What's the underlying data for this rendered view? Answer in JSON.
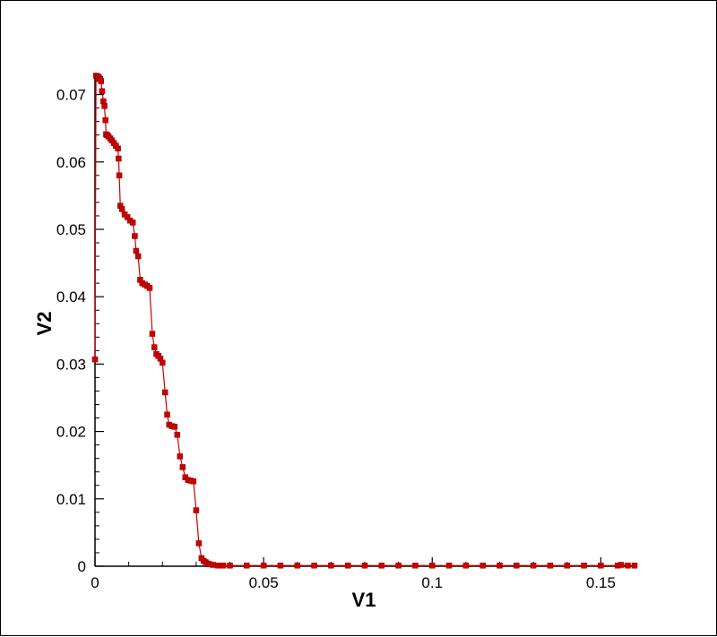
{
  "chart_data": {
    "type": "line",
    "title": "",
    "xlabel": "V1",
    "ylabel": "V2",
    "xlim": [
      0,
      0.16
    ],
    "ylim": [
      0,
      0.073
    ],
    "grid": false,
    "legend": "none",
    "marker": "square",
    "color": "#cc0000",
    "x_ticks": [
      0,
      0.05,
      0.1,
      0.15
    ],
    "x_tick_labels": [
      "0",
      "0.05",
      "0.1",
      "0.15"
    ],
    "y_ticks": [
      0,
      0.01,
      0.02,
      0.03,
      0.04,
      0.05,
      0.06,
      0.07
    ],
    "y_tick_labels": [
      "0",
      "0.01",
      "0.02",
      "0.03",
      "0.04",
      "0.05",
      "0.06",
      "0.07"
    ],
    "series": [
      {
        "x": [
          0.0,
          0.0003,
          0.0006,
          0.0009,
          0.0012,
          0.0015,
          0.0018,
          0.0021,
          0.0025,
          0.0028,
          0.0031,
          0.0033,
          0.0036,
          0.004,
          0.0045,
          0.005,
          0.0056,
          0.0062,
          0.0068,
          0.007,
          0.0072,
          0.0075,
          0.008,
          0.0088,
          0.0096,
          0.0104,
          0.0112,
          0.0118,
          0.0122,
          0.0128,
          0.0134,
          0.014,
          0.0148,
          0.0155,
          0.0162,
          0.017,
          0.0176,
          0.0182,
          0.0188,
          0.0194,
          0.02,
          0.0208,
          0.0214,
          0.022,
          0.0228,
          0.0236,
          0.0244,
          0.0252,
          0.026,
          0.0268,
          0.0276,
          0.0284,
          0.0292,
          0.03,
          0.0308,
          0.0316,
          0.0322,
          0.0328,
          0.0334,
          0.034,
          0.035,
          0.0365,
          0.038,
          0.04,
          0.045,
          0.05,
          0.055,
          0.06,
          0.065,
          0.07,
          0.075,
          0.08,
          0.085,
          0.09,
          0.095,
          0.1,
          0.105,
          0.11,
          0.115,
          0.12,
          0.125,
          0.13,
          0.135,
          0.14,
          0.145,
          0.15,
          0.155,
          0.156,
          0.158,
          0.16
        ],
        "y": [
          0.0307,
          0.0728,
          0.0726,
          0.0727,
          0.0725,
          0.0723,
          0.072,
          0.0705,
          0.069,
          0.0683,
          0.0662,
          0.0641,
          0.064,
          0.0638,
          0.0635,
          0.0632,
          0.0628,
          0.0624,
          0.062,
          0.0605,
          0.058,
          0.0535,
          0.053,
          0.0522,
          0.0518,
          0.0513,
          0.051,
          0.049,
          0.0468,
          0.046,
          0.0425,
          0.042,
          0.0418,
          0.0416,
          0.0413,
          0.0345,
          0.0325,
          0.0315,
          0.0312,
          0.0308,
          0.0302,
          0.0258,
          0.0225,
          0.021,
          0.0208,
          0.0207,
          0.0195,
          0.0163,
          0.0147,
          0.0132,
          0.0128,
          0.0127,
          0.0126,
          0.0083,
          0.0034,
          0.0012,
          0.0008,
          0.0006,
          0.0004,
          0.0003,
          0.0002,
          0.0001,
          0.0001,
          0.0001,
          0.0001,
          0.0001,
          0.0001,
          0.0001,
          0.0001,
          0.0001,
          0.0001,
          0.0001,
          0.0001,
          0.0001,
          0.0001,
          0.0001,
          0.0001,
          0.0001,
          0.0001,
          0.0001,
          0.0001,
          0.0001,
          0.0001,
          0.0001,
          0.0001,
          0.0001,
          0.0001,
          0.0002,
          0.0001,
          0.0001
        ]
      }
    ]
  }
}
